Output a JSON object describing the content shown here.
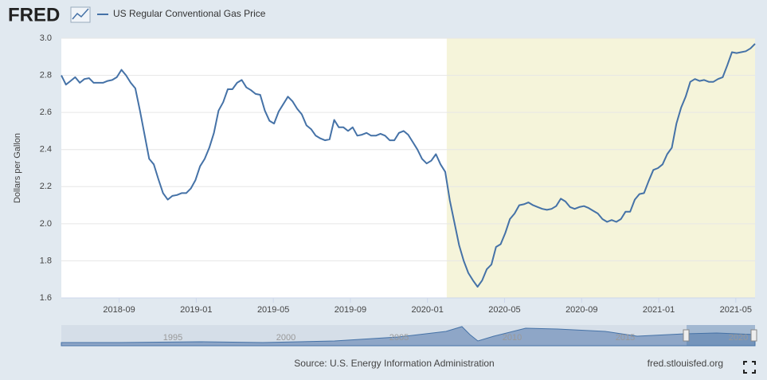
{
  "brand": "FRED",
  "source": "Source: U.S. Energy Information Administration",
  "site": "fred.stlouisfed.org",
  "navigator": {
    "labels": [
      "1995",
      "2000",
      "2005",
      "2010",
      "2015",
      "2020"
    ]
  },
  "chart_data": {
    "type": "line",
    "ylabel": "Dollars per Gallon",
    "xlim": [
      "2018-06",
      "2021-06"
    ],
    "xticks": [
      "2018-09",
      "2019-01",
      "2019-05",
      "2019-09",
      "2020-01",
      "2020-05",
      "2020-09",
      "2021-01",
      "2021-05"
    ],
    "ylim": [
      1.6,
      3.0
    ],
    "yticks": [
      1.6,
      1.8,
      {
        "value": 2.0,
        "label": "2.0"
      },
      2.2,
      2.4,
      2.6,
      2.8,
      {
        "value": 3.0,
        "label": "3.0"
      }
    ],
    "grid": true,
    "shaded_ranges": [
      [
        "2020-02",
        "2021-06"
      ]
    ],
    "series": [
      {
        "name": "US Regular Conventional Gas Price",
        "color": "#4572a7",
        "values": [
          2.8,
          2.75,
          2.77,
          2.79,
          2.76,
          2.78,
          2.785,
          2.76,
          2.76,
          2.76,
          2.77,
          2.775,
          2.79,
          2.83,
          2.8,
          2.76,
          2.73,
          2.61,
          2.48,
          2.35,
          2.32,
          2.24,
          2.165,
          2.13,
          2.15,
          2.155,
          2.165,
          2.165,
          2.19,
          2.235,
          2.31,
          2.35,
          2.41,
          2.49,
          2.61,
          2.655,
          2.725,
          2.725,
          2.76,
          2.775,
          2.735,
          2.72,
          2.7,
          2.695,
          2.61,
          2.555,
          2.54,
          2.605,
          2.645,
          2.685,
          2.66,
          2.62,
          2.59,
          2.53,
          2.51,
          2.475,
          2.46,
          2.45,
          2.455,
          2.56,
          2.52,
          2.52,
          2.5,
          2.52,
          2.475,
          2.48,
          2.49,
          2.475,
          2.475,
          2.485,
          2.475,
          2.45,
          2.45,
          2.49,
          2.5,
          2.48,
          2.44,
          2.4,
          2.35,
          2.325,
          2.34,
          2.375,
          2.32,
          2.28,
          2.125,
          2.005,
          1.885,
          1.8,
          1.735,
          1.695,
          1.66,
          1.695,
          1.755,
          1.78,
          1.875,
          1.89,
          1.95,
          2.025,
          2.055,
          2.1,
          2.105,
          2.115,
          2.1,
          2.09,
          2.08,
          2.075,
          2.08,
          2.095,
          2.135,
          2.12,
          2.09,
          2.08,
          2.09,
          2.095,
          2.085,
          2.07,
          2.055,
          2.025,
          2.01,
          2.02,
          2.01,
          2.025,
          2.065,
          2.065,
          2.13,
          2.16,
          2.165,
          2.23,
          2.29,
          2.3,
          2.32,
          2.375,
          2.41,
          2.54,
          2.625,
          2.685,
          2.765,
          2.78,
          2.77,
          2.775,
          2.765,
          2.765,
          2.78,
          2.79,
          2.855,
          2.925,
          2.92,
          2.925,
          2.93,
          2.945,
          2.97
        ]
      }
    ]
  }
}
